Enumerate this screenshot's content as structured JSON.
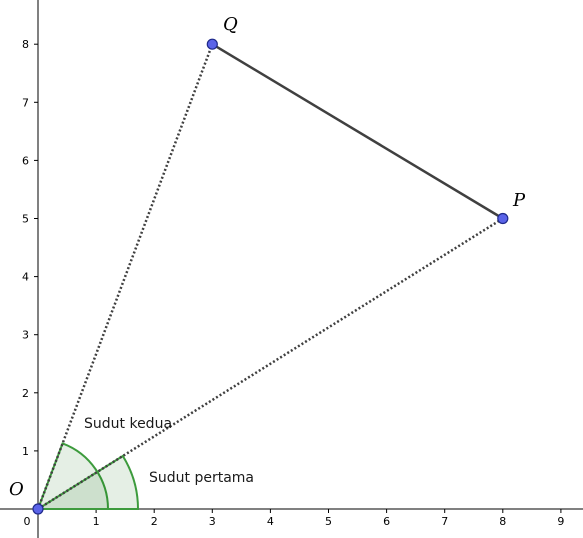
{
  "axes": {
    "x_ticks": [
      "0",
      "1",
      "2",
      "3",
      "4",
      "5",
      "6",
      "7",
      "8",
      "9"
    ],
    "y_ticks": [
      "1",
      "2",
      "3",
      "4",
      "5",
      "6",
      "7",
      "8"
    ]
  },
  "points": {
    "O": {
      "label": "O",
      "x": 0,
      "y": 0
    },
    "P": {
      "label": "P",
      "x": 8,
      "y": 5
    },
    "Q": {
      "label": "Q",
      "x": 3,
      "y": 8
    }
  },
  "angles": {
    "first": {
      "label": "Sudut pertama"
    },
    "second": {
      "label": "Sudut kedua"
    }
  },
  "colors": {
    "point_fill": "#5a63e8",
    "angle_stroke": "#3d9b3d",
    "segment": "#404040"
  }
}
